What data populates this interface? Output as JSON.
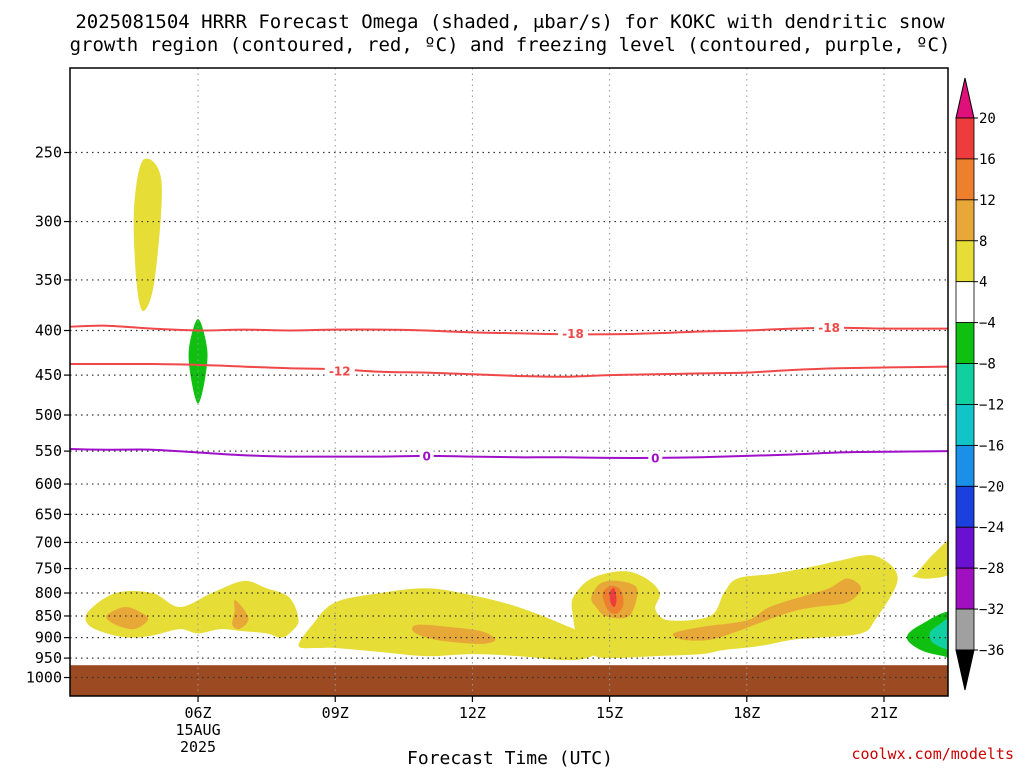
{
  "title": {
    "line1": "2025081504 HRRR Forecast Omega (shaded, μbar/s) for KOKC with dendritic snow",
    "line2": "growth region (contoured, red, ºC) and freezing level (contoured, purple, ºC)"
  },
  "xlabel": "Forecast Time (UTC)",
  "credit": "coolwx.com/modelts",
  "chart_data": {
    "type": "heatmap",
    "x_axis": {
      "unit": "hours UTC",
      "range": [
        3.2,
        22.4
      ],
      "ticks": [
        {
          "value": 6,
          "label": "06Z",
          "sub": [
            "15AUG",
            "2025"
          ]
        },
        {
          "value": 9,
          "label": "09Z"
        },
        {
          "value": 12,
          "label": "12Z"
        },
        {
          "value": 15,
          "label": "15Z"
        },
        {
          "value": 18,
          "label": "18Z"
        },
        {
          "value": 21,
          "label": "21Z"
        }
      ]
    },
    "y_axis": {
      "unit": "hPa",
      "scale": "log",
      "inverted": true,
      "range": [
        1050,
        200
      ],
      "ticks": [
        250,
        300,
        350,
        400,
        450,
        500,
        550,
        600,
        650,
        700,
        750,
        800,
        850,
        900,
        950,
        1000
      ]
    },
    "grid": true,
    "colorbar": {
      "labels": [
        "20",
        "16",
        "12",
        "8",
        "4",
        "−4",
        "−8",
        "−12",
        "−16",
        "−20",
        "−24",
        "−28",
        "−32",
        "−36"
      ],
      "bins": [
        {
          "range": [
            20,
            null
          ],
          "color": "#e0107a"
        },
        {
          "range": [
            16,
            20
          ],
          "color": "#ee3b3b"
        },
        {
          "range": [
            12,
            16
          ],
          "color": "#ee7f2d"
        },
        {
          "range": [
            8,
            12
          ],
          "color": "#e8a838"
        },
        {
          "range": [
            4,
            8
          ],
          "color": "#e6dd36"
        },
        {
          "range": [
            -4,
            4
          ],
          "color": "#ffffff"
        },
        {
          "range": [
            -8,
            -4
          ],
          "color": "#10c010"
        },
        {
          "range": [
            -12,
            -8
          ],
          "color": "#10d0a0"
        },
        {
          "range": [
            -16,
            -12
          ],
          "color": "#10c4c8"
        },
        {
          "range": [
            -20,
            -16
          ],
          "color": "#1a90e8"
        },
        {
          "range": [
            -24,
            -20
          ],
          "color": "#1a40e0"
        },
        {
          "range": [
            -28,
            -24
          ],
          "color": "#6a10d0"
        },
        {
          "range": [
            -32,
            -28
          ],
          "color": "#a010c0"
        },
        {
          "range": [
            -36,
            -32
          ],
          "color": "#a0a0a0"
        },
        {
          "range": [
            null,
            -36
          ],
          "color": "#000000"
        }
      ]
    },
    "surface": {
      "from_hPa": 968,
      "color": "#9b4a22"
    },
    "shaded_regions": [
      {
        "level": "4-8",
        "color": "#e6dd36",
        "points": [
          [
            4.8,
            255
          ],
          [
            5.2,
            270
          ],
          [
            5.05,
            350
          ],
          [
            4.8,
            380
          ],
          [
            4.65,
            350
          ],
          [
            4.6,
            290
          ]
        ]
      },
      {
        "level": "4-8",
        "color": "#e6dd36",
        "points": [
          [
            3.6,
            840
          ],
          [
            4.2,
            800
          ],
          [
            5.0,
            800
          ],
          [
            5.6,
            830
          ],
          [
            6.3,
            800
          ],
          [
            7.0,
            775
          ],
          [
            7.5,
            790
          ],
          [
            8.0,
            810
          ],
          [
            8.2,
            860
          ],
          [
            8.0,
            890
          ],
          [
            7.8,
            900
          ],
          [
            7.5,
            890
          ],
          [
            7.0,
            885
          ],
          [
            6.5,
            880
          ],
          [
            6.0,
            890
          ],
          [
            5.6,
            880
          ],
          [
            5.0,
            895
          ],
          [
            4.5,
            900
          ],
          [
            4.0,
            890
          ],
          [
            3.6,
            870
          ]
        ]
      },
      {
        "level": "4-8",
        "color": "#e6dd36",
        "points": [
          [
            8.2,
            920
          ],
          [
            8.5,
            870
          ],
          [
            9.0,
            820
          ],
          [
            10,
            800
          ],
          [
            11,
            790
          ],
          [
            12,
            805
          ],
          [
            13,
            830
          ],
          [
            14,
            870
          ],
          [
            14.7,
            905
          ],
          [
            14.8,
            930
          ],
          [
            14.5,
            950
          ],
          [
            14,
            955
          ],
          [
            13,
            945
          ],
          [
            12,
            940
          ],
          [
            11,
            945
          ],
          [
            10,
            935
          ],
          [
            9,
            925
          ],
          [
            8.6,
            925
          ]
        ]
      },
      {
        "level": "4-8",
        "color": "#e6dd36",
        "points": [
          [
            14.2,
            810
          ],
          [
            14.6,
            770
          ],
          [
            15.3,
            755
          ],
          [
            15.8,
            770
          ],
          [
            16.1,
            800
          ],
          [
            16.0,
            835
          ],
          [
            16.3,
            860
          ],
          [
            17.2,
            850
          ],
          [
            17.5,
            800
          ],
          [
            17.8,
            770
          ],
          [
            18.6,
            760
          ],
          [
            19.5,
            745
          ],
          [
            20,
            735
          ],
          [
            20.8,
            725
          ],
          [
            21.3,
            770
          ],
          [
            20.8,
            860
          ],
          [
            20.5,
            890
          ],
          [
            19.6,
            900
          ],
          [
            19,
            905
          ],
          [
            18.3,
            920
          ],
          [
            17.5,
            930
          ],
          [
            17,
            940
          ],
          [
            16,
            945
          ],
          [
            15,
            950
          ],
          [
            14.6,
            940
          ],
          [
            14.3,
            900
          ],
          [
            14.2,
            850
          ]
        ]
      },
      {
        "level": "4-8",
        "color": "#e6dd36",
        "points": [
          [
            21.7,
            760
          ],
          [
            22.1,
            720
          ],
          [
            22.5,
            695
          ],
          [
            22.5,
            755
          ],
          [
            22.0,
            770
          ],
          [
            21.6,
            765
          ]
        ]
      },
      {
        "level": "8-12",
        "color": "#e8a838",
        "points": [
          [
            4.4,
            830
          ],
          [
            4.8,
            845
          ],
          [
            4.9,
            860
          ],
          [
            4.6,
            880
          ],
          [
            4.2,
            870
          ],
          [
            4.0,
            850
          ]
        ]
      },
      {
        "level": "8-12",
        "color": "#e8a838",
        "points": [
          [
            6.8,
            815
          ],
          [
            7.0,
            835
          ],
          [
            7.1,
            860
          ],
          [
            6.9,
            880
          ],
          [
            6.75,
            870
          ],
          [
            6.8,
            840
          ]
        ]
      },
      {
        "level": "8-12",
        "color": "#e8a838",
        "points": [
          [
            10.8,
            870
          ],
          [
            11.5,
            875
          ],
          [
            12.2,
            885
          ],
          [
            12.5,
            905
          ],
          [
            12.2,
            915
          ],
          [
            11.5,
            910
          ],
          [
            11,
            900
          ],
          [
            10.7,
            885
          ]
        ]
      },
      {
        "level": "8-12",
        "color": "#e8a838",
        "points": [
          [
            14.6,
            810
          ],
          [
            14.8,
            780
          ],
          [
            15.2,
            775
          ],
          [
            15.6,
            790
          ],
          [
            15.5,
            840
          ],
          [
            15.3,
            855
          ],
          [
            14.9,
            850
          ],
          [
            14.7,
            830
          ]
        ]
      },
      {
        "level": "8-12",
        "color": "#e8a838",
        "points": [
          [
            16.4,
            890
          ],
          [
            17.0,
            875
          ],
          [
            18.0,
            860
          ],
          [
            18.5,
            830
          ],
          [
            19.3,
            805
          ],
          [
            19.8,
            790
          ],
          [
            20.2,
            770
          ],
          [
            20.5,
            790
          ],
          [
            20.2,
            820
          ],
          [
            19.5,
            830
          ],
          [
            19,
            840
          ],
          [
            18.3,
            865
          ],
          [
            17.8,
            885
          ],
          [
            17.2,
            905
          ],
          [
            16.6,
            905
          ]
        ]
      },
      {
        "level": "12-16",
        "color": "#ee7f2d",
        "points": [
          [
            14.85,
            800
          ],
          [
            15.05,
            785
          ],
          [
            15.25,
            795
          ],
          [
            15.3,
            825
          ],
          [
            15.15,
            845
          ],
          [
            14.95,
            835
          ]
        ]
      },
      {
        "level": "16-20",
        "color": "#ee3b3b",
        "points": [
          [
            15.0,
            800
          ],
          [
            15.1,
            790
          ],
          [
            15.15,
            815
          ],
          [
            15.1,
            830
          ],
          [
            15.02,
            820
          ]
        ]
      },
      {
        "level": "-8--4",
        "color": "#10c010",
        "points": [
          [
            6.0,
            388
          ],
          [
            6.2,
            420
          ],
          [
            6.15,
            455
          ],
          [
            6.0,
            485
          ],
          [
            5.85,
            455
          ],
          [
            5.8,
            420
          ]
        ]
      },
      {
        "level": "-8--4",
        "color": "#10c010",
        "points": [
          [
            22.5,
            843
          ],
          [
            21.8,
            870
          ],
          [
            21.5,
            900
          ],
          [
            21.8,
            930
          ],
          [
            22.3,
            945
          ],
          [
            22.5,
            945
          ]
        ]
      },
      {
        "level": "-12--8",
        "color": "#10d0a0",
        "points": [
          [
            22.5,
            855
          ],
          [
            22.2,
            870
          ],
          [
            22.0,
            890
          ],
          [
            22.1,
            915
          ],
          [
            22.5,
            925
          ]
        ]
      },
      {
        "level": "-16--12",
        "color": "#10c4c8",
        "points": [
          [
            22.5,
            878
          ],
          [
            22.35,
            888
          ],
          [
            22.4,
            900
          ],
          [
            22.5,
            905
          ]
        ]
      }
    ],
    "contours": [
      {
        "label": "-18",
        "color": "#f04848",
        "points": [
          [
            3.2,
            396
          ],
          [
            4,
            395
          ],
          [
            5,
            398
          ],
          [
            6,
            400
          ],
          [
            7,
            399
          ],
          [
            8,
            400
          ],
          [
            9,
            399
          ],
          [
            10,
            399
          ],
          [
            11,
            400
          ],
          [
            12,
            402
          ],
          [
            13,
            403
          ],
          [
            14,
            404
          ],
          [
            15,
            404
          ],
          [
            16,
            403
          ],
          [
            17,
            401
          ],
          [
            18,
            400
          ],
          [
            19,
            398
          ],
          [
            20,
            397
          ],
          [
            21,
            398
          ],
          [
            22.4,
            398
          ]
        ],
        "labels_at": [
          [
            14.2,
            403
          ],
          [
            19.8,
            397
          ]
        ]
      },
      {
        "label": "-12",
        "color": "#f04848",
        "points": [
          [
            3.2,
            437
          ],
          [
            4,
            437
          ],
          [
            5,
            437
          ],
          [
            6,
            438
          ],
          [
            7,
            440
          ],
          [
            8,
            442
          ],
          [
            9,
            443
          ],
          [
            10,
            446
          ],
          [
            11,
            447
          ],
          [
            12,
            449
          ],
          [
            13,
            451
          ],
          [
            14,
            452
          ],
          [
            15,
            450
          ],
          [
            16,
            449
          ],
          [
            17,
            448
          ],
          [
            18,
            447
          ],
          [
            19,
            444
          ],
          [
            20,
            442
          ],
          [
            21,
            441
          ],
          [
            22.4,
            440
          ]
        ],
        "labels_at": [
          [
            9.1,
            445
          ]
        ]
      },
      {
        "label": "0",
        "color": "#a010c8",
        "points": [
          [
            3.2,
            547
          ],
          [
            4,
            548
          ],
          [
            5,
            548
          ],
          [
            6,
            552
          ],
          [
            7,
            556
          ],
          [
            8,
            558
          ],
          [
            9,
            558
          ],
          [
            10,
            558
          ],
          [
            11,
            557
          ],
          [
            12,
            558
          ],
          [
            13,
            559
          ],
          [
            14,
            559
          ],
          [
            15,
            560
          ],
          [
            16,
            560
          ],
          [
            17,
            559
          ],
          [
            18,
            557
          ],
          [
            19,
            555
          ],
          [
            20,
            552
          ],
          [
            21,
            551
          ],
          [
            22.4,
            550
          ]
        ],
        "labels_at": [
          [
            11,
            557
          ],
          [
            16,
            560
          ]
        ]
      }
    ]
  }
}
